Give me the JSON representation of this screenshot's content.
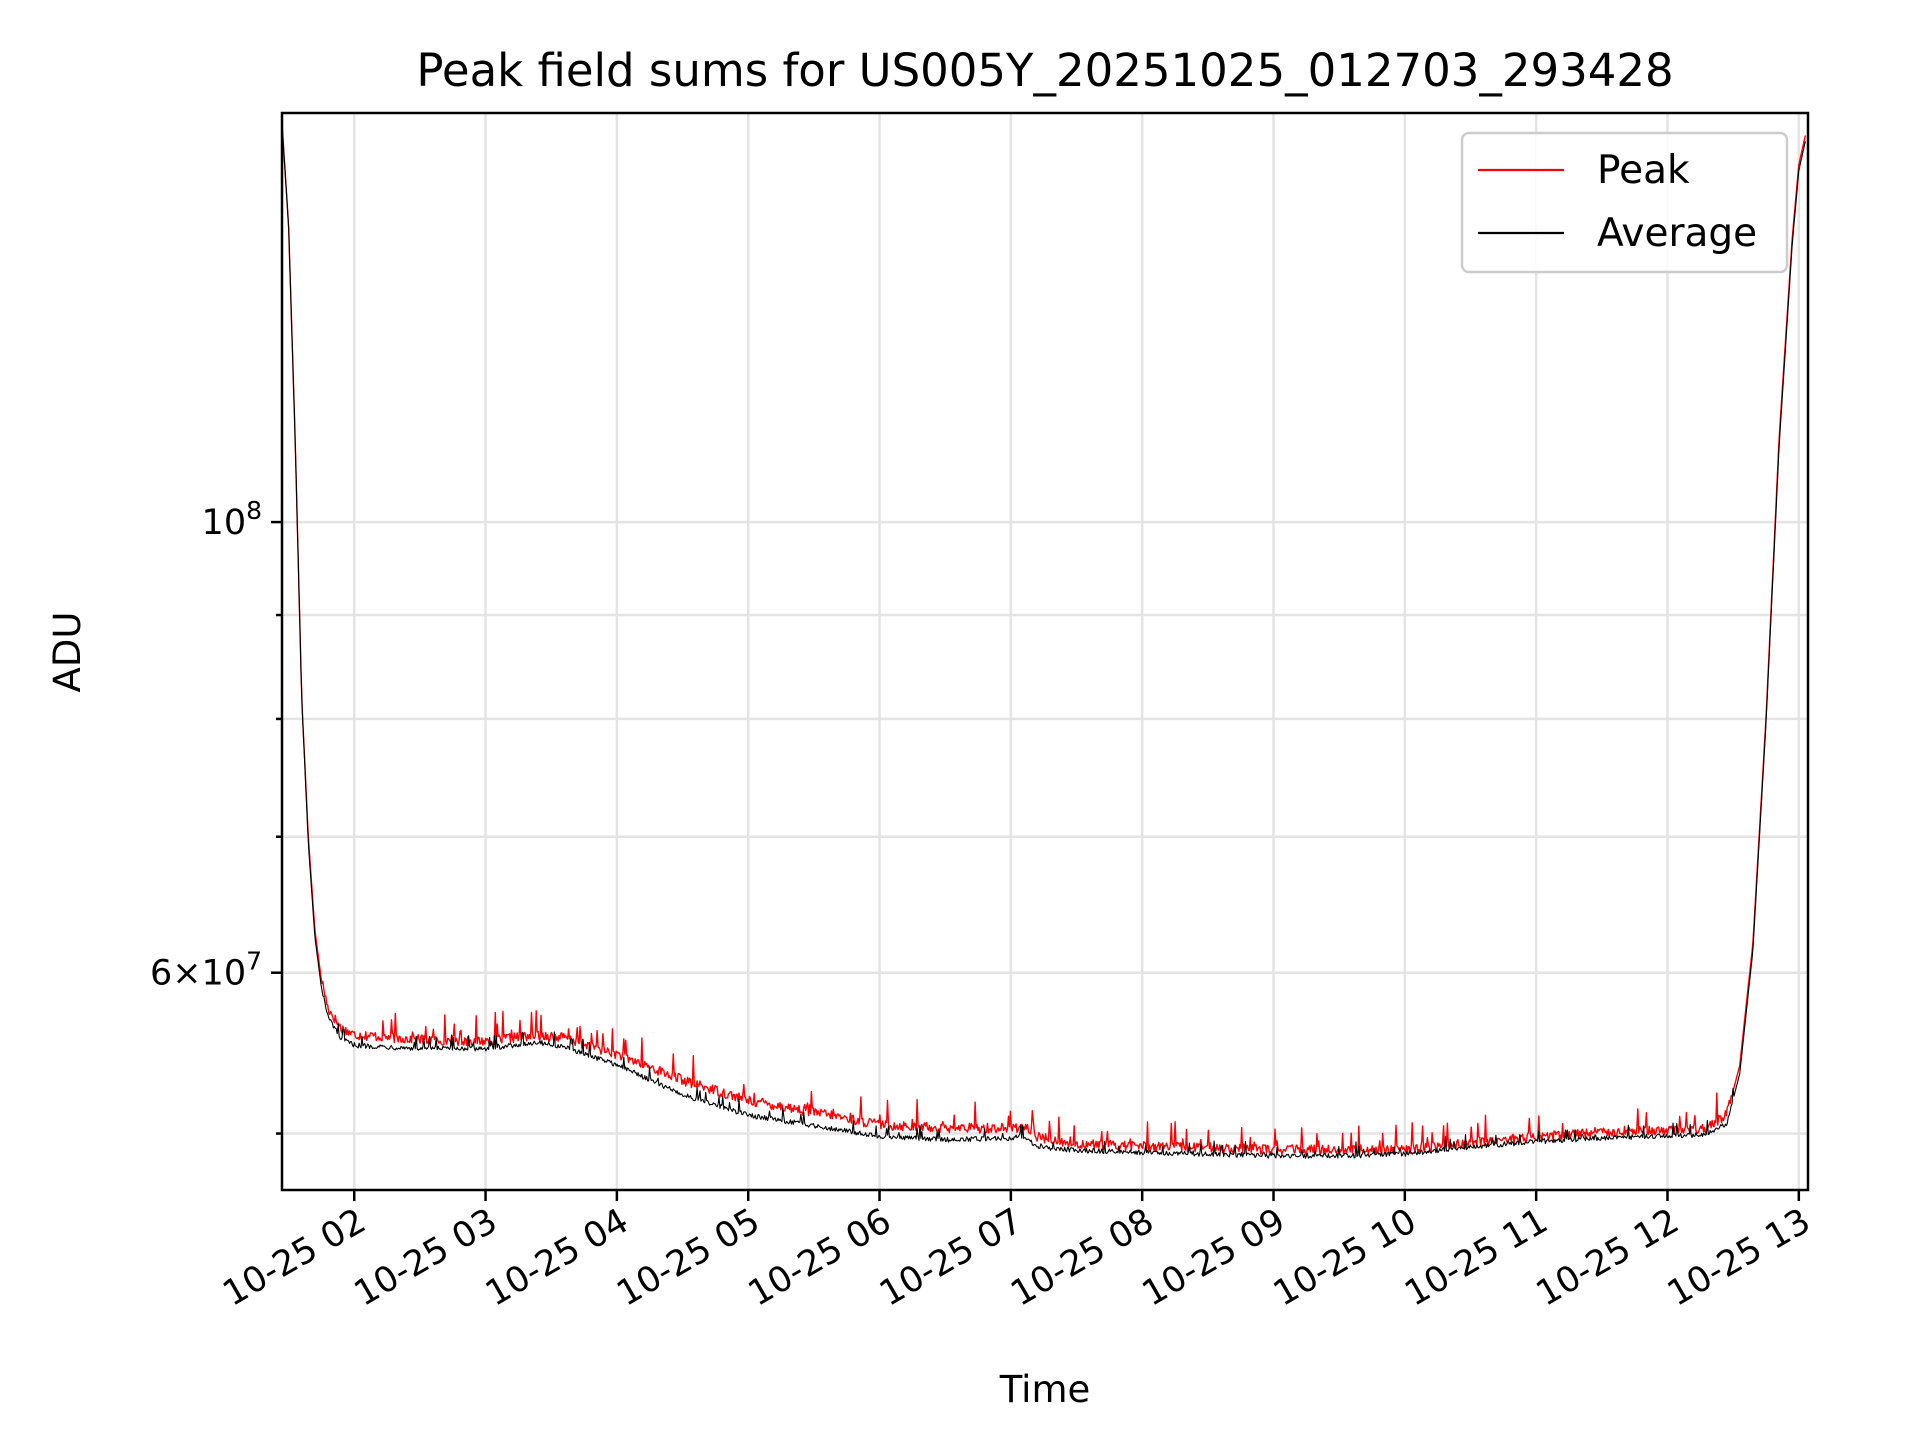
{
  "chart_data": {
    "type": "line",
    "title": "Peak field sums for US005Y_20251025_012703_293428",
    "xlabel": "Time",
    "ylabel": "ADU",
    "yscale": "log",
    "ylim": [
      46900000,
      159000000
    ],
    "xlim_hours": [
      1.45,
      13.07
    ],
    "x_unit": "hours on 2025-10-25",
    "grid": true,
    "legend_position": "upper right",
    "x_ticks": [
      {
        "hour": 2,
        "label": "10-25 02"
      },
      {
        "hour": 3,
        "label": "10-25 03"
      },
      {
        "hour": 4,
        "label": "10-25 04"
      },
      {
        "hour": 5,
        "label": "10-25 05"
      },
      {
        "hour": 6,
        "label": "10-25 06"
      },
      {
        "hour": 7,
        "label": "10-25 07"
      },
      {
        "hour": 8,
        "label": "10-25 08"
      },
      {
        "hour": 9,
        "label": "10-25 09"
      },
      {
        "hour": 10,
        "label": "10-25 10"
      },
      {
        "hour": 11,
        "label": "10-25 11"
      },
      {
        "hour": 12,
        "label": "10-25 12"
      },
      {
        "hour": 13,
        "label": "10-25 13"
      }
    ],
    "y_major_ticks": [
      {
        "value": 100000000,
        "base": "10",
        "exp": "8"
      },
      {
        "value": 60000000,
        "mant": "6",
        "base": "10",
        "exp": "7"
      }
    ],
    "y_minor_ticks": [
      50000000,
      70000000,
      80000000,
      90000000
    ],
    "series": [
      {
        "name": "Peak",
        "color": "#ff0000",
        "spike_amplitude": 0.012,
        "points": [
          [
            1.45,
            157000000
          ],
          [
            1.5,
            140000000
          ],
          [
            1.55,
            110000000
          ],
          [
            1.6,
            82000000
          ],
          [
            1.65,
            70000000
          ],
          [
            1.7,
            63000000
          ],
          [
            1.75,
            59500000
          ],
          [
            1.8,
            57500000
          ],
          [
            1.9,
            56200000
          ],
          [
            2.0,
            55800000
          ],
          [
            2.5,
            55500000
          ],
          [
            3.0,
            55400000
          ],
          [
            3.4,
            55800000
          ],
          [
            3.6,
            55600000
          ],
          [
            4.0,
            54600000
          ],
          [
            4.5,
            53000000
          ],
          [
            5.0,
            51800000
          ],
          [
            5.5,
            51100000
          ],
          [
            6.0,
            50400000
          ],
          [
            6.5,
            50200000
          ],
          [
            7.0,
            50200000
          ],
          [
            7.1,
            50300000
          ],
          [
            7.2,
            49700000
          ],
          [
            7.5,
            49300000
          ],
          [
            8.0,
            49200000
          ],
          [
            8.5,
            49100000
          ],
          [
            9.0,
            49000000
          ],
          [
            9.5,
            49000000
          ],
          [
            10.0,
            49000000
          ],
          [
            10.5,
            49400000
          ],
          [
            11.0,
            49700000
          ],
          [
            11.5,
            50000000
          ],
          [
            12.0,
            50100000
          ],
          [
            12.3,
            50200000
          ],
          [
            12.45,
            51000000
          ],
          [
            12.55,
            54000000
          ],
          [
            12.65,
            62000000
          ],
          [
            12.75,
            80000000
          ],
          [
            12.85,
            110000000
          ],
          [
            12.95,
            138000000
          ],
          [
            13.0,
            150000000
          ],
          [
            13.05,
            155000000
          ]
        ]
      },
      {
        "name": "Average",
        "color": "#000000",
        "spike_amplitude": 0.006,
        "points": [
          [
            1.45,
            157000000
          ],
          [
            1.5,
            140000000
          ],
          [
            1.55,
            110000000
          ],
          [
            1.6,
            82000000
          ],
          [
            1.65,
            69500000
          ],
          [
            1.7,
            62500000
          ],
          [
            1.75,
            59000000
          ],
          [
            1.8,
            57000000
          ],
          [
            1.9,
            55600000
          ],
          [
            2.0,
            55200000
          ],
          [
            2.5,
            55000000
          ],
          [
            3.0,
            55000000
          ],
          [
            3.4,
            55400000
          ],
          [
            3.6,
            55100000
          ],
          [
            4.0,
            54000000
          ],
          [
            4.5,
            52200000
          ],
          [
            5.0,
            51000000
          ],
          [
            5.5,
            50400000
          ],
          [
            6.0,
            49800000
          ],
          [
            6.5,
            49600000
          ],
          [
            7.0,
            49700000
          ],
          [
            7.1,
            49800000
          ],
          [
            7.2,
            49200000
          ],
          [
            7.5,
            49000000
          ],
          [
            8.0,
            48900000
          ],
          [
            8.5,
            48800000
          ],
          [
            9.0,
            48700000
          ],
          [
            9.5,
            48700000
          ],
          [
            10.0,
            48800000
          ],
          [
            10.5,
            49200000
          ],
          [
            11.0,
            49500000
          ],
          [
            11.5,
            49700000
          ],
          [
            12.0,
            49800000
          ],
          [
            12.3,
            49900000
          ],
          [
            12.45,
            50500000
          ],
          [
            12.55,
            53500000
          ],
          [
            12.65,
            61500000
          ],
          [
            12.75,
            79500000
          ],
          [
            12.85,
            109000000
          ],
          [
            12.95,
            137000000
          ],
          [
            13.0,
            149000000
          ],
          [
            13.05,
            154000000
          ]
        ]
      }
    ]
  }
}
